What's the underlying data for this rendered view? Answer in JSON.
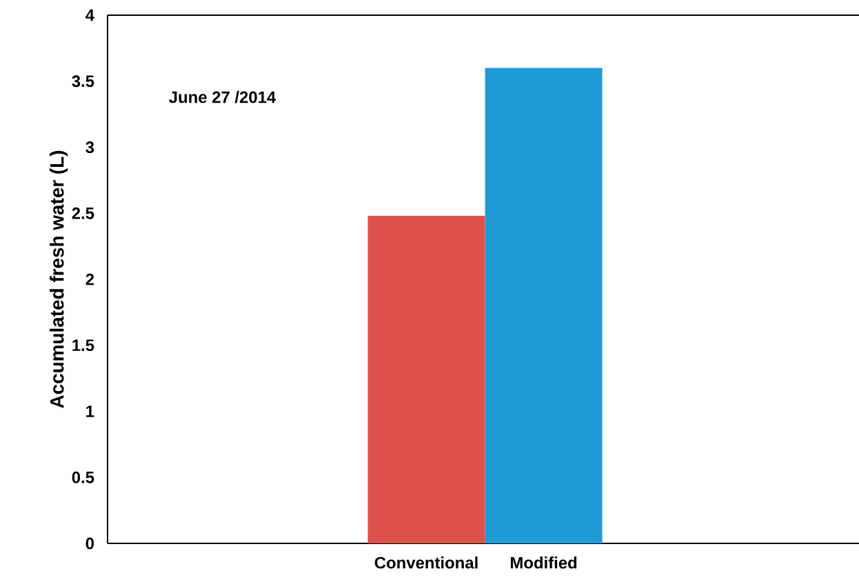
{
  "chart_data": {
    "type": "bar",
    "ylabel": "Accumulated fresh water (L)",
    "categories": [
      "Conventional",
      "Modified"
    ],
    "values": [
      2.48,
      3.6
    ],
    "colors": [
      "#dc514a",
      "#1e9bd7"
    ],
    "ylim": [
      0,
      4
    ],
    "yticks": [
      0,
      0.5,
      1,
      1.5,
      2,
      2.5,
      3,
      3.5,
      4
    ],
    "annotations": [
      "June 27 /2014"
    ]
  }
}
